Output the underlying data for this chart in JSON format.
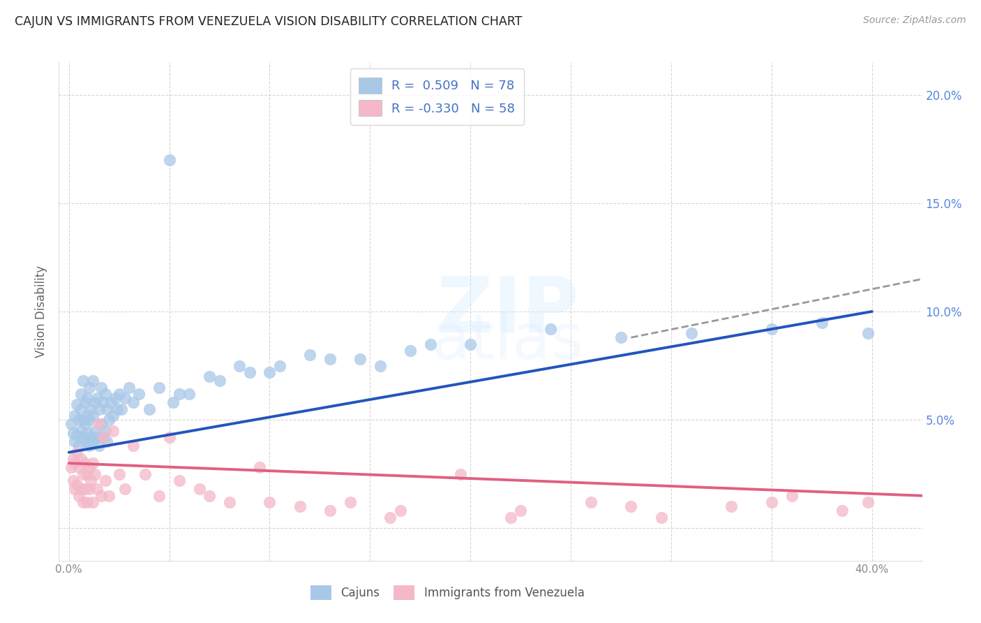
{
  "title": "CAJUN VS IMMIGRANTS FROM VENEZUELA VISION DISABILITY CORRELATION CHART",
  "source": "Source: ZipAtlas.com",
  "ylabel": "Vision Disability",
  "xlim": [
    -0.005,
    0.425
  ],
  "ylim": [
    -0.015,
    0.215
  ],
  "cajuns_R": 0.509,
  "cajuns_N": 78,
  "venezuela_R": -0.33,
  "venezuela_N": 58,
  "cajun_color": "#a8c8e8",
  "venezuela_color": "#f4b8c8",
  "trend_cajun_color": "#2255bb",
  "trend_venezuela_color": "#e06080",
  "trend_dashed_color": "#999999",
  "background_color": "#ffffff",
  "grid_color": "#cccccc",
  "title_color": "#222222",
  "axis_label_color": "#666666",
  "right_axis_color": "#5588dd",
  "legend_text_color": "#4472c4",
  "cajuns_scatter_x": [
    0.001,
    0.002,
    0.003,
    0.003,
    0.004,
    0.004,
    0.005,
    0.005,
    0.006,
    0.006,
    0.006,
    0.007,
    0.007,
    0.007,
    0.008,
    0.008,
    0.008,
    0.009,
    0.009,
    0.009,
    0.01,
    0.01,
    0.01,
    0.011,
    0.011,
    0.012,
    0.012,
    0.012,
    0.013,
    0.013,
    0.014,
    0.014,
    0.015,
    0.015,
    0.016,
    0.016,
    0.017,
    0.017,
    0.018,
    0.018,
    0.019,
    0.019,
    0.02,
    0.021,
    0.022,
    0.023,
    0.024,
    0.025,
    0.026,
    0.028,
    0.03,
    0.032,
    0.035,
    0.04,
    0.045,
    0.052,
    0.06,
    0.07,
    0.085,
    0.1,
    0.12,
    0.145,
    0.17,
    0.2,
    0.24,
    0.275,
    0.31,
    0.35,
    0.375,
    0.398,
    0.05,
    0.055,
    0.075,
    0.09,
    0.105,
    0.13,
    0.155,
    0.18
  ],
  "cajuns_scatter_y": [
    0.048,
    0.044,
    0.052,
    0.04,
    0.057,
    0.043,
    0.05,
    0.038,
    0.045,
    0.055,
    0.062,
    0.042,
    0.05,
    0.068,
    0.04,
    0.048,
    0.058,
    0.044,
    0.052,
    0.06,
    0.038,
    0.05,
    0.065,
    0.042,
    0.055,
    0.04,
    0.052,
    0.068,
    0.045,
    0.058,
    0.042,
    0.06,
    0.038,
    0.055,
    0.048,
    0.065,
    0.042,
    0.058,
    0.045,
    0.062,
    0.04,
    0.055,
    0.05,
    0.058,
    0.052,
    0.06,
    0.055,
    0.062,
    0.055,
    0.06,
    0.065,
    0.058,
    0.062,
    0.055,
    0.065,
    0.058,
    0.062,
    0.07,
    0.075,
    0.072,
    0.08,
    0.078,
    0.082,
    0.085,
    0.092,
    0.088,
    0.09,
    0.092,
    0.095,
    0.09,
    0.17,
    0.062,
    0.068,
    0.072,
    0.075,
    0.078,
    0.075,
    0.085
  ],
  "venezuela_scatter_x": [
    0.001,
    0.002,
    0.002,
    0.003,
    0.003,
    0.004,
    0.004,
    0.005,
    0.005,
    0.006,
    0.006,
    0.007,
    0.007,
    0.008,
    0.008,
    0.009,
    0.009,
    0.01,
    0.01,
    0.011,
    0.012,
    0.012,
    0.013,
    0.014,
    0.015,
    0.016,
    0.017,
    0.018,
    0.02,
    0.022,
    0.025,
    0.028,
    0.032,
    0.038,
    0.045,
    0.055,
    0.065,
    0.08,
    0.095,
    0.115,
    0.14,
    0.165,
    0.195,
    0.225,
    0.26,
    0.295,
    0.33,
    0.36,
    0.385,
    0.398,
    0.05,
    0.07,
    0.1,
    0.13,
    0.16,
    0.22,
    0.28,
    0.35
  ],
  "venezuela_scatter_y": [
    0.028,
    0.032,
    0.022,
    0.03,
    0.018,
    0.035,
    0.02,
    0.028,
    0.015,
    0.032,
    0.018,
    0.025,
    0.012,
    0.03,
    0.018,
    0.025,
    0.012,
    0.028,
    0.018,
    0.022,
    0.03,
    0.012,
    0.025,
    0.018,
    0.048,
    0.015,
    0.042,
    0.022,
    0.015,
    0.045,
    0.025,
    0.018,
    0.038,
    0.025,
    0.015,
    0.022,
    0.018,
    0.012,
    0.028,
    0.01,
    0.012,
    0.008,
    0.025,
    0.008,
    0.012,
    0.005,
    0.01,
    0.015,
    0.008,
    0.012,
    0.042,
    0.015,
    0.012,
    0.008,
    0.005,
    0.005,
    0.01,
    0.012
  ],
  "cajun_trend_x0": 0.0,
  "cajun_trend_y0": 0.035,
  "cajun_trend_x1": 0.4,
  "cajun_trend_y1": 0.1,
  "cajun_trend_dashed_x0": 0.28,
  "cajun_trend_dashed_y0": 0.088,
  "cajun_trend_dashed_x1": 0.425,
  "cajun_trend_dashed_y1": 0.115,
  "venezuela_trend_x0": 0.0,
  "venezuela_trend_y0": 0.03,
  "venezuela_trend_x1": 0.425,
  "venezuela_trend_y1": 0.015,
  "x_tick_positions": [
    0.0,
    0.05,
    0.1,
    0.15,
    0.2,
    0.25,
    0.3,
    0.35,
    0.4
  ],
  "y_tick_positions": [
    0.0,
    0.05,
    0.1,
    0.15,
    0.2
  ]
}
